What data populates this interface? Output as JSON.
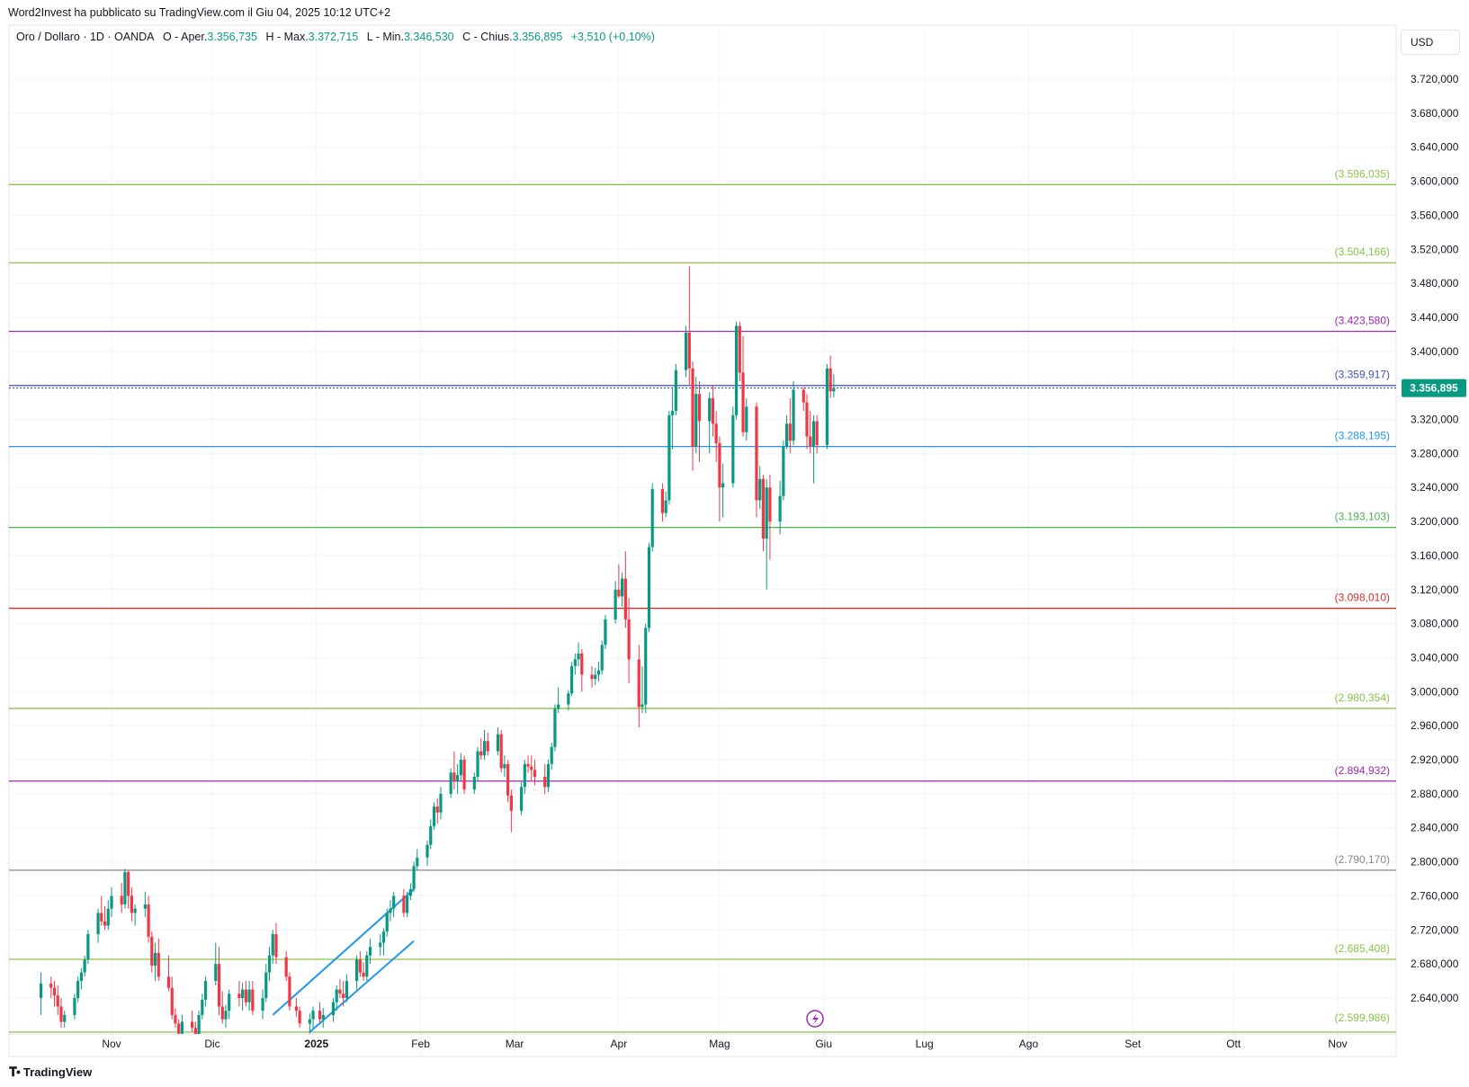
{
  "publisher_line": "Word2Invest ha pubblicato su TradingView.com il Giu 04, 2025 10:12 UTC+2",
  "legend": {
    "symbol": "Oro / Dollaro · 1D · OANDA",
    "open_label": "O - Aper.",
    "open_value": "3.356,735",
    "high_label": "H - Max.",
    "high_value": "3.372,715",
    "low_label": "L - Min.",
    "low_value": "3.346,530",
    "close_label": "C - Chius.",
    "close_value": "3.356,895",
    "change": "+3,510 (+0,10%)"
  },
  "currency_button": "USD",
  "brand": "TradingView",
  "colors": {
    "up": "#089981",
    "down": "#f23645",
    "grid": "#f0f3fa",
    "axis_text": "#131722"
  },
  "chart_data": {
    "type": "candlestick",
    "y_tick_labels": [
      "3.720,000",
      "3.680,000",
      "3.640,000",
      "3.600,000",
      "3.560,000",
      "3.520,000",
      "3.480,000",
      "3.440,000",
      "3.400,000",
      "3.360,000",
      "3.320,000",
      "3.280,000",
      "3.240,000",
      "3.200,000",
      "3.160,000",
      "3.120,000",
      "3.080,000",
      "3.040,000",
      "3.000,000",
      "2.960,000",
      "2.920,000",
      "2.880,000",
      "2.840,000",
      "2.800,000",
      "2.760,000",
      "2.720,000",
      "2.680,000",
      "2.640,000"
    ],
    "y_ticks": [
      3720,
      3680,
      3640,
      3600,
      3560,
      3520,
      3480,
      3440,
      3400,
      3360,
      3320,
      3280,
      3240,
      3200,
      3160,
      3120,
      3080,
      3040,
      3000,
      2960,
      2920,
      2880,
      2840,
      2800,
      2760,
      2720,
      2680,
      2640
    ],
    "x_tick_labels": [
      "Nov",
      "Dic",
      "2025",
      "Feb",
      "Mar",
      "Apr",
      "Mag",
      "Giu",
      "Lug",
      "Ago",
      "Set",
      "Ott",
      "Nov"
    ],
    "x_tick_dates": [
      "2024-11-01",
      "2024-12-01",
      "2025-01-01",
      "2025-02-01",
      "2025-03-01",
      "2025-04-01",
      "2025-05-01",
      "2025-06-01",
      "2025-07-01",
      "2025-08-01",
      "2025-09-01",
      "2025-10-01",
      "2025-11-01"
    ],
    "current_price": 3356.895,
    "current_price_label": "3.356,895",
    "levels": [
      {
        "value": 3596.035,
        "label": "(3.596,035)",
        "color": "#8bc34a"
      },
      {
        "value": 3504.166,
        "label": "(3.504,166)",
        "color": "#8bc34a"
      },
      {
        "value": 3423.58,
        "label": "(3.423,580)",
        "color": "#9c27b0"
      },
      {
        "value": 3359.917,
        "label": "(3.359,917)",
        "color": "#3f51b5"
      },
      {
        "value": 3288.195,
        "label": "(3.288,195)",
        "color": "#2196f3"
      },
      {
        "value": 3193.103,
        "label": "(3.193,103)",
        "color": "#4caf50"
      },
      {
        "value": 3098.01,
        "label": "(3.098,010)",
        "color": "#d32f2f"
      },
      {
        "value": 2980.354,
        "label": "(2.980,354)",
        "color": "#8bc34a"
      },
      {
        "value": 2894.932,
        "label": "(2.894,932)",
        "color": "#9c27b0"
      },
      {
        "value": 2790.17,
        "label": "(2.790,170)",
        "color": "#888888"
      },
      {
        "value": 2685.408,
        "label": "(2.685,408)",
        "color": "#8bc34a"
      },
      {
        "value": 2599.986,
        "label": "(2.599,986)",
        "color": "#8bc34a"
      }
    ],
    "trend_channel": {
      "color": "#2196f3",
      "upper": {
        "from": [
          "2024-12-19",
          2620
        ],
        "to": [
          "2025-01-30",
          2768
        ]
      },
      "lower": {
        "from": [
          "2024-12-30",
          2600
        ],
        "to": [
          "2025-01-30",
          2707
        ]
      }
    },
    "candles": [
      [
        "2024-10-11",
        2640,
        2670,
        2620,
        2657
      ],
      [
        "2024-10-14",
        2657,
        2665,
        2640,
        2652
      ],
      [
        "2024-10-15",
        2652,
        2660,
        2630,
        2643
      ],
      [
        "2024-10-16",
        2643,
        2655,
        2620,
        2630
      ],
      [
        "2024-10-17",
        2630,
        2640,
        2605,
        2612
      ],
      [
        "2024-10-18",
        2612,
        2625,
        2605,
        2620
      ],
      [
        "2024-10-21",
        2620,
        2645,
        2615,
        2640
      ],
      [
        "2024-10-22",
        2640,
        2665,
        2635,
        2660
      ],
      [
        "2024-10-23",
        2660,
        2675,
        2650,
        2670
      ],
      [
        "2024-10-24",
        2670,
        2690,
        2665,
        2685
      ],
      [
        "2024-10-25",
        2685,
        2720,
        2680,
        2715
      ],
      [
        "2024-10-28",
        2715,
        2745,
        2705,
        2740
      ],
      [
        "2024-10-29",
        2740,
        2760,
        2725,
        2730
      ],
      [
        "2024-10-30",
        2730,
        2748,
        2720,
        2725
      ],
      [
        "2024-10-31",
        2725,
        2755,
        2720,
        2745
      ],
      [
        "2024-11-01",
        2745,
        2770,
        2735,
        2760
      ],
      [
        "2024-11-04",
        2760,
        2775,
        2740,
        2750
      ],
      [
        "2024-11-05",
        2750,
        2792,
        2745,
        2788
      ],
      [
        "2024-11-06",
        2788,
        2790,
        2745,
        2760
      ],
      [
        "2024-11-07",
        2760,
        2770,
        2730,
        2740
      ],
      [
        "2024-11-08",
        2740,
        2750,
        2725,
        2745
      ],
      [
        "2024-11-11",
        2745,
        2765,
        2735,
        2750
      ],
      [
        "2024-11-12",
        2750,
        2760,
        2705,
        2712
      ],
      [
        "2024-11-13",
        2712,
        2718,
        2670,
        2678
      ],
      [
        "2024-11-14",
        2678,
        2705,
        2660,
        2693
      ],
      [
        "2024-11-15",
        2693,
        2710,
        2660,
        2665
      ],
      [
        "2024-11-18",
        2665,
        2690,
        2648,
        2652
      ],
      [
        "2024-11-19",
        2652,
        2665,
        2615,
        2620
      ],
      [
        "2024-11-20",
        2620,
        2628,
        2605,
        2610
      ],
      [
        "2024-11-21",
        2610,
        2615,
        2595,
        2598
      ],
      [
        "2024-11-22",
        2598,
        2620,
        2590,
        2612
      ],
      [
        "2024-11-25",
        2612,
        2625,
        2600,
        2605
      ],
      [
        "2024-11-26",
        2605,
        2612,
        2590,
        2595
      ],
      [
        "2024-11-27",
        2595,
        2625,
        2590,
        2620
      ],
      [
        "2024-11-28",
        2620,
        2645,
        2615,
        2638
      ],
      [
        "2024-11-29",
        2638,
        2665,
        2630,
        2660
      ],
      [
        "2024-12-02",
        2660,
        2705,
        2655,
        2680
      ],
      [
        "2024-12-03",
        2680,
        2700,
        2620,
        2630
      ],
      [
        "2024-12-04",
        2630,
        2648,
        2610,
        2615
      ],
      [
        "2024-12-05",
        2615,
        2632,
        2605,
        2625
      ],
      [
        "2024-12-06",
        2625,
        2650,
        2615,
        2645
      ],
      [
        "2024-12-09",
        2645,
        2660,
        2630,
        2640
      ],
      [
        "2024-12-10",
        2640,
        2658,
        2625,
        2650
      ],
      [
        "2024-12-11",
        2650,
        2660,
        2630,
        2635
      ],
      [
        "2024-12-12",
        2635,
        2660,
        2625,
        2650
      ],
      [
        "2024-12-13",
        2650,
        2660,
        2620,
        2625
      ],
      [
        "2024-12-16",
        2625,
        2650,
        2615,
        2640
      ],
      [
        "2024-12-17",
        2640,
        2680,
        2635,
        2670
      ],
      [
        "2024-12-18",
        2670,
        2700,
        2660,
        2690
      ],
      [
        "2024-12-19",
        2690,
        2720,
        2680,
        2715
      ],
      [
        "2024-12-20",
        2715,
        2728,
        2680,
        2688
      ],
      [
        "2024-12-23",
        2688,
        2695,
        2660,
        2665
      ],
      [
        "2024-12-24",
        2665,
        2670,
        2625,
        2630
      ],
      [
        "2024-12-26",
        2630,
        2640,
        2618,
        2625
      ],
      [
        "2024-12-27",
        2625,
        2630,
        2605,
        2610
      ],
      [
        "2024-12-30",
        2610,
        2622,
        2598,
        2615
      ],
      [
        "2024-12-31",
        2615,
        2630,
        2605,
        2625
      ],
      [
        "2025-01-02",
        2625,
        2635,
        2610,
        2615
      ],
      [
        "2025-01-03",
        2615,
        2628,
        2605,
        2620
      ],
      [
        "2025-01-06",
        2620,
        2640,
        2612,
        2635
      ],
      [
        "2025-01-07",
        2635,
        2655,
        2625,
        2650
      ],
      [
        "2025-01-08",
        2650,
        2662,
        2640,
        2645
      ],
      [
        "2025-01-09",
        2645,
        2660,
        2630,
        2640
      ],
      [
        "2025-01-10",
        2640,
        2668,
        2635,
        2660
      ],
      [
        "2025-01-13",
        2660,
        2690,
        2650,
        2685
      ],
      [
        "2025-01-14",
        2685,
        2695,
        2665,
        2670
      ],
      [
        "2025-01-15",
        2670,
        2682,
        2660,
        2665
      ],
      [
        "2025-01-16",
        2665,
        2695,
        2660,
        2690
      ],
      [
        "2025-01-17",
        2690,
        2710,
        2680,
        2700
      ],
      [
        "2025-01-20",
        2700,
        2715,
        2690,
        2705
      ],
      [
        "2025-01-21",
        2705,
        2722,
        2690,
        2718
      ],
      [
        "2025-01-22",
        2718,
        2745,
        2712,
        2740
      ],
      [
        "2025-01-23",
        2740,
        2755,
        2730,
        2745
      ],
      [
        "2025-01-24",
        2745,
        2765,
        2735,
        2760
      ],
      [
        "2025-01-27",
        2760,
        2768,
        2735,
        2740
      ],
      [
        "2025-01-28",
        2740,
        2765,
        2735,
        2760
      ],
      [
        "2025-01-29",
        2760,
        2775,
        2755,
        2768
      ],
      [
        "2025-01-30",
        2768,
        2800,
        2765,
        2795
      ],
      [
        "2025-01-31",
        2795,
        2815,
        2790,
        2805
      ],
      [
        "2025-02-03",
        2805,
        2825,
        2795,
        2820
      ],
      [
        "2025-02-04",
        2820,
        2850,
        2815,
        2842
      ],
      [
        "2025-02-05",
        2842,
        2870,
        2838,
        2865
      ],
      [
        "2025-02-06",
        2865,
        2875,
        2845,
        2858
      ],
      [
        "2025-02-07",
        2858,
        2888,
        2850,
        2880
      ],
      [
        "2025-02-10",
        2880,
        2910,
        2875,
        2905
      ],
      [
        "2025-02-11",
        2905,
        2930,
        2885,
        2895
      ],
      [
        "2025-02-12",
        2895,
        2915,
        2880,
        2902
      ],
      [
        "2025-02-13",
        2902,
        2928,
        2895,
        2920
      ],
      [
        "2025-02-14",
        2920,
        2925,
        2880,
        2885
      ],
      [
        "2025-02-17",
        2885,
        2905,
        2880,
        2900
      ],
      [
        "2025-02-18",
        2900,
        2935,
        2895,
        2930
      ],
      [
        "2025-02-19",
        2930,
        2945,
        2920,
        2925
      ],
      [
        "2025-02-20",
        2925,
        2955,
        2920,
        2942
      ],
      [
        "2025-02-21",
        2942,
        2952,
        2925,
        2930
      ],
      [
        "2025-02-24",
        2930,
        2958,
        2925,
        2950
      ],
      [
        "2025-02-25",
        2950,
        2955,
        2905,
        2910
      ],
      [
        "2025-02-26",
        2910,
        2925,
        2900,
        2915
      ],
      [
        "2025-02-27",
        2915,
        2920,
        2870,
        2878
      ],
      [
        "2025-02-28",
        2878,
        2885,
        2835,
        2860
      ],
      [
        "2025-03-03",
        2860,
        2895,
        2855,
        2888
      ],
      [
        "2025-03-04",
        2888,
        2920,
        2880,
        2915
      ],
      [
        "2025-03-05",
        2915,
        2925,
        2905,
        2912
      ],
      [
        "2025-03-06",
        2912,
        2925,
        2895,
        2908
      ],
      [
        "2025-03-07",
        2908,
        2920,
        2890,
        2900
      ],
      [
        "2025-03-10",
        2900,
        2915,
        2880,
        2888
      ],
      [
        "2025-03-11",
        2888,
        2920,
        2882,
        2915
      ],
      [
        "2025-03-12",
        2915,
        2940,
        2908,
        2935
      ],
      [
        "2025-03-13",
        2935,
        2985,
        2930,
        2980
      ],
      [
        "2025-03-14",
        2980,
        3005,
        2975,
        2985
      ],
      [
        "2025-03-17",
        2985,
        3002,
        2978,
        2998
      ],
      [
        "2025-03-18",
        2998,
        3035,
        2995,
        3030
      ],
      [
        "2025-03-19",
        3030,
        3045,
        3020,
        3038
      ],
      [
        "2025-03-20",
        3038,
        3058,
        3030,
        3045
      ],
      [
        "2025-03-21",
        3045,
        3050,
        3000,
        3020
      ],
      [
        "2025-03-24",
        3020,
        3030,
        3005,
        3015
      ],
      [
        "2025-03-25",
        3015,
        3028,
        3008,
        3020
      ],
      [
        "2025-03-26",
        3020,
        3035,
        3012,
        3025
      ],
      [
        "2025-03-27",
        3025,
        3060,
        3020,
        3055
      ],
      [
        "2025-03-28",
        3055,
        3090,
        3050,
        3085
      ],
      [
        "2025-03-31",
        3085,
        3130,
        3080,
        3120
      ],
      [
        "2025-04-01",
        3120,
        3150,
        3110,
        3112
      ],
      [
        "2025-04-02",
        3112,
        3140,
        3100,
        3133
      ],
      [
        "2025-04-03",
        3133,
        3165,
        3075,
        3085
      ],
      [
        "2025-04-04",
        3085,
        3110,
        3010,
        3038
      ],
      [
        "2025-04-07",
        3038,
        3055,
        2958,
        2982
      ],
      [
        "2025-04-08",
        2982,
        3030,
        2975,
        2985
      ],
      [
        "2025-04-09",
        2985,
        3080,
        2975,
        3075
      ],
      [
        "2025-04-10",
        3075,
        3175,
        3070,
        3170
      ],
      [
        "2025-04-11",
        3170,
        3245,
        3165,
        3238
      ],
      [
        "2025-04-14",
        3238,
        3245,
        3200,
        3210
      ],
      [
        "2025-04-15",
        3210,
        3235,
        3205,
        3225
      ],
      [
        "2025-04-16",
        3225,
        3330,
        3220,
        3325
      ],
      [
        "2025-04-17",
        3325,
        3358,
        3285,
        3330
      ],
      [
        "2025-04-18",
        3330,
        3385,
        3325,
        3378
      ],
      [
        "2025-04-21",
        3378,
        3430,
        3370,
        3422
      ],
      [
        "2025-04-22",
        3422,
        3500,
        3360,
        3380
      ],
      [
        "2025-04-23",
        3380,
        3388,
        3260,
        3288
      ],
      [
        "2025-04-24",
        3288,
        3370,
        3280,
        3350
      ],
      [
        "2025-04-25",
        3350,
        3365,
        3270,
        3318
      ],
      [
        "2025-04-28",
        3318,
        3352,
        3280,
        3345
      ],
      [
        "2025-04-29",
        3345,
        3360,
        3300,
        3315
      ],
      [
        "2025-04-30",
        3315,
        3330,
        3270,
        3292
      ],
      [
        "2025-05-01",
        3292,
        3300,
        3200,
        3240
      ],
      [
        "2025-05-02",
        3240,
        3268,
        3205,
        3245
      ],
      [
        "2025-05-05",
        3245,
        3335,
        3240,
        3325
      ],
      [
        "2025-05-06",
        3325,
        3435,
        3320,
        3430
      ],
      [
        "2025-05-07",
        3430,
        3435,
        3365,
        3375
      ],
      [
        "2025-05-08",
        3375,
        3418,
        3300,
        3305
      ],
      [
        "2025-05-09",
        3305,
        3345,
        3295,
        3335
      ],
      [
        "2025-05-12",
        3335,
        3340,
        3205,
        3225
      ],
      [
        "2025-05-13",
        3225,
        3265,
        3215,
        3250
      ],
      [
        "2025-05-14",
        3250,
        3255,
        3165,
        3180
      ],
      [
        "2025-05-15",
        3180,
        3250,
        3120,
        3240
      ],
      [
        "2025-05-16",
        3240,
        3255,
        3155,
        3200
      ],
      [
        "2025-05-19",
        3200,
        3248,
        3185,
        3230
      ],
      [
        "2025-05-20",
        3230,
        3295,
        3225,
        3288
      ],
      [
        "2025-05-21",
        3288,
        3325,
        3285,
        3315
      ],
      [
        "2025-05-22",
        3315,
        3345,
        3280,
        3295
      ],
      [
        "2025-05-23",
        3295,
        3365,
        3290,
        3355
      ],
      [
        "2025-05-26",
        3355,
        3358,
        3330,
        3340
      ],
      [
        "2025-05-27",
        3340,
        3350,
        3285,
        3300
      ],
      [
        "2025-05-28",
        3300,
        3330,
        3280,
        3288
      ],
      [
        "2025-05-29",
        3288,
        3325,
        3245,
        3318
      ],
      [
        "2025-05-30",
        3318,
        3325,
        3280,
        3290
      ],
      [
        "2025-06-02",
        3290,
        3385,
        3285,
        3380
      ],
      [
        "2025-06-03",
        3380,
        3395,
        3345,
        3353
      ],
      [
        "2025-06-04",
        3353,
        3373,
        3346,
        3357
      ]
    ]
  }
}
